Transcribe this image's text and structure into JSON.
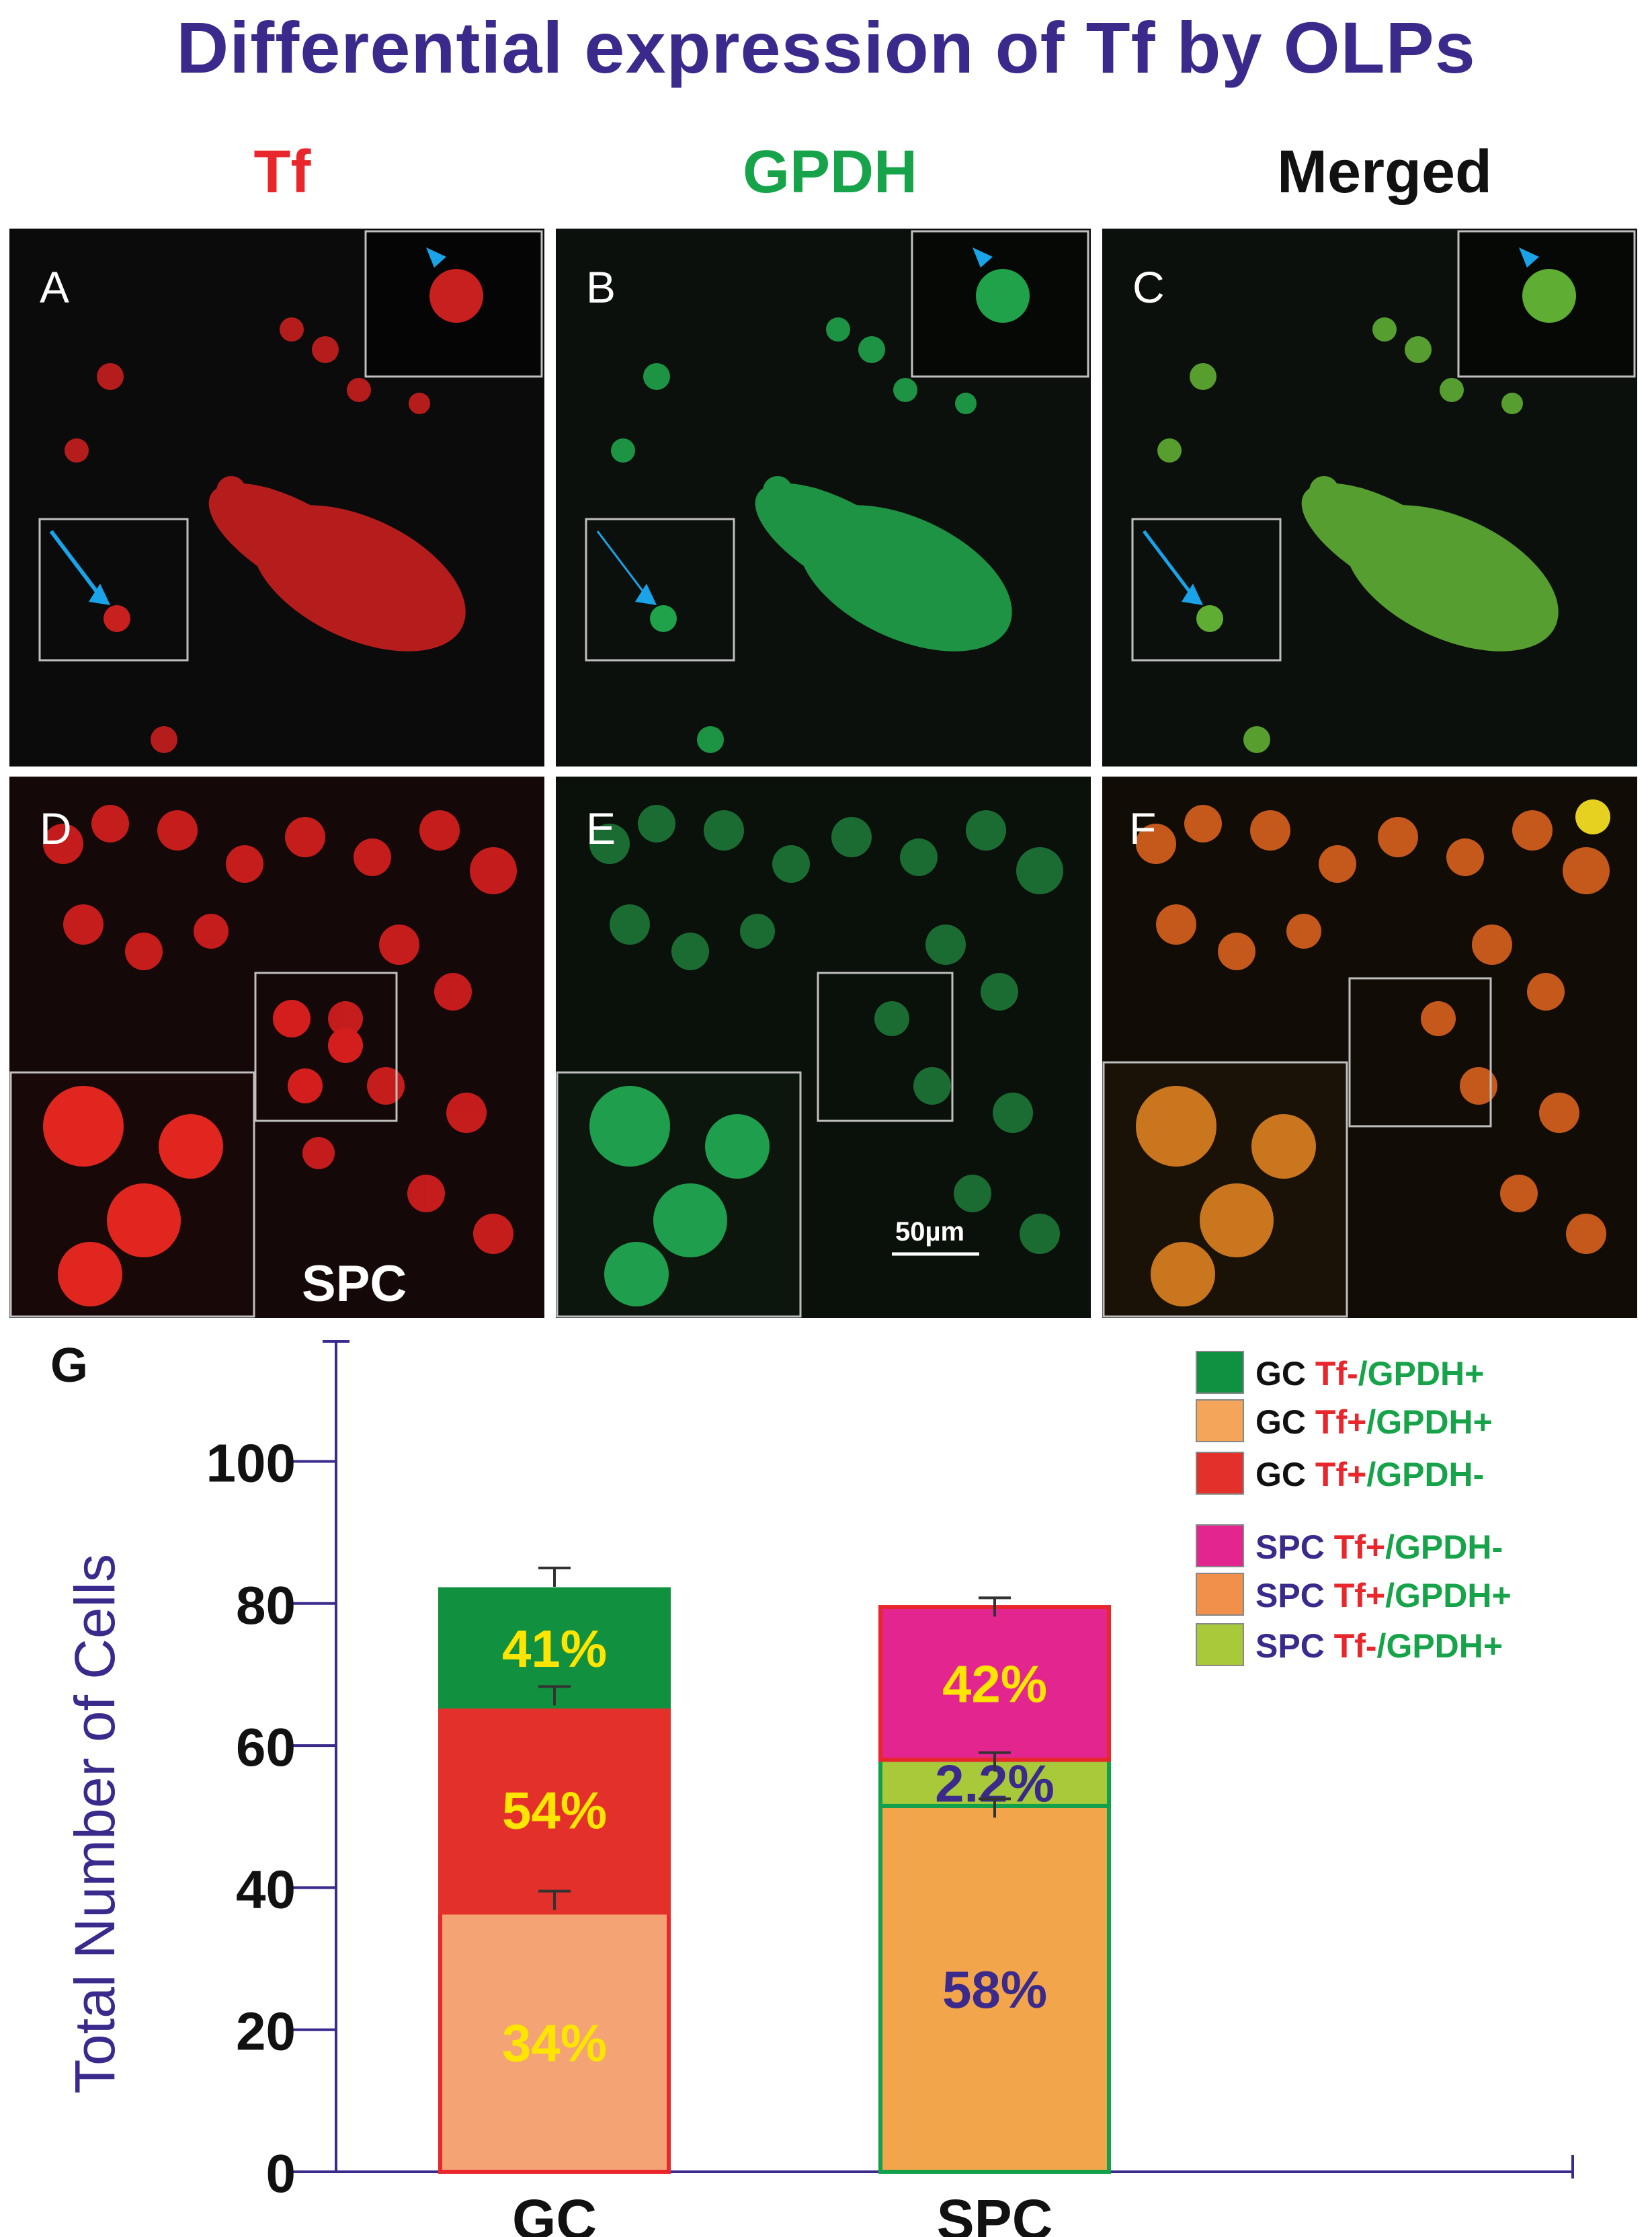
{
  "figure": {
    "title": "Differential expression of Tf by OLPs",
    "column_headers": [
      {
        "label": "Tf",
        "color": "#e8262b"
      },
      {
        "label": "GPDH",
        "color": "#17a34a"
      },
      {
        "label": "Merged",
        "color": "#111111"
      }
    ],
    "panels": [
      {
        "letter": "A",
        "stain": "red"
      },
      {
        "letter": "B",
        "stain": "green"
      },
      {
        "letter": "C",
        "stain": "merged-green"
      },
      {
        "letter": "D",
        "stain": "red"
      },
      {
        "letter": "E",
        "stain": "green"
      },
      {
        "letter": "F",
        "stain": "merged-orange"
      }
    ],
    "panel_d_overlay": "SPC",
    "scale_bar": "50µm"
  },
  "chart_data": {
    "panel_letter": "G",
    "type": "stacked-bar",
    "ylabel": "Total Number of Cells",
    "ylim": [
      0,
      115
    ],
    "yticks": [
      "0",
      "20",
      "40",
      "60",
      "80",
      "100"
    ],
    "ytick_values": [
      0,
      20,
      40,
      60,
      80,
      100
    ],
    "categories": [
      "GC",
      "SPC"
    ],
    "stacks": [
      {
        "category": "GC",
        "segments": [
          {
            "series": "GC Tf+/GPDH+",
            "bottom": 0,
            "top": 36.5,
            "label": "34%",
            "fill": "#f4a374",
            "stroke": "#e8262b",
            "label_color": "#ffe500"
          },
          {
            "series": "GC Tf+/GPDH-",
            "bottom": 36.5,
            "top": 65.5,
            "label": "54%",
            "fill": "#e3302b",
            "stroke": "#e3302b",
            "label_color": "#ffe500"
          },
          {
            "series": "GC Tf-/GPDH+",
            "bottom": 65.5,
            "top": 82,
            "label": "41%",
            "fill": "#11913f",
            "stroke": "#11913f",
            "label_color": "#ffe500"
          }
        ],
        "error_bars": [
          39.5,
          68.3,
          85
        ]
      },
      {
        "category": "SPC",
        "segments": [
          {
            "series": "SPC Tf+/GPDH+",
            "bottom": 0,
            "top": 51.5,
            "label": "58%",
            "fill": "#f2a54a",
            "stroke": "#12a04a",
            "label_color": "#3b2a8c"
          },
          {
            "series": "SPC Tf-/GPDH+",
            "bottom": 51.5,
            "top": 58,
            "label": "2.2%",
            "fill": "#a8c93a",
            "stroke": "#12a04a",
            "label_color": "#3b2a8c"
          },
          {
            "series": "SPC Tf+/GPDH-",
            "bottom": 58,
            "top": 79.5,
            "label": "42%",
            "fill": "#e3268f",
            "stroke": "#e8262b",
            "label_color": "#ffe500"
          }
        ],
        "error_bars": [
          52.5,
          59,
          80.8
        ]
      }
    ],
    "legend": [
      {
        "prefix": "GC",
        "marker": "Tf-",
        "rest": "/GPDH+",
        "swatch": "#0e9140",
        "prefix_color": "#111111"
      },
      {
        "prefix": "GC",
        "marker": "Tf+",
        "rest": "/GPDH+",
        "swatch": "#f4a55a",
        "prefix_color": "#111111"
      },
      {
        "prefix": "GC",
        "marker": "Tf+",
        "rest": "/GPDH-",
        "swatch": "#e3302b",
        "prefix_color": "#111111"
      },
      {
        "prefix": "SPC",
        "marker": "Tf+",
        "rest": "/GPDH-",
        "swatch": "#e3268f",
        "prefix_color": "#3b2a8c"
      },
      {
        "prefix": "SPC",
        "marker": "Tf+",
        "rest": "/GPDH+",
        "swatch": "#f0904a",
        "prefix_color": "#3b2a8c"
      },
      {
        "prefix": "SPC",
        "marker": "Tf-",
        "rest": "/GPDH+",
        "swatch": "#a8c93a",
        "prefix_color": "#3b2a8c"
      }
    ],
    "legend_marker_color": "#e8262b",
    "legend_rest_color": "#17a34a",
    "axis_color": "#3b2a8c",
    "ylabel_color": "#3b2a8c"
  }
}
